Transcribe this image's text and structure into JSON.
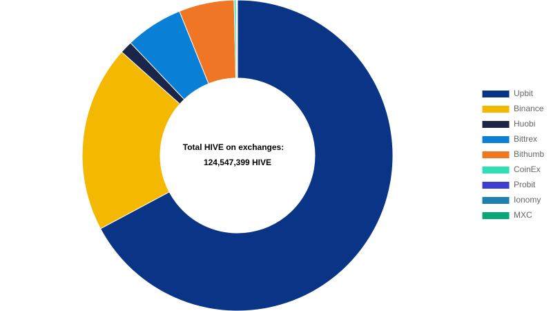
{
  "chart_data": {
    "type": "donut",
    "center_title": "Total HIVE on exchanges:",
    "center_value": "124,547,399 HIVE",
    "categories": [
      "Upbit",
      "Binance",
      "Huobi",
      "Bittrex",
      "Bithumb",
      "CoinEx",
      "Probit",
      "Ionomy",
      "MXC"
    ],
    "values": [
      67.2,
      19.4,
      1.3,
      6.0,
      5.75,
      0.2,
      0.05,
      0.05,
      0.05
    ],
    "colors": [
      "#0a3586",
      "#f5b800",
      "#1a2548",
      "#0a7fd6",
      "#f07524",
      "#2de0b4",
      "#3d3dd0",
      "#1f7fb0",
      "#0aa876"
    ],
    "legend": "right"
  }
}
